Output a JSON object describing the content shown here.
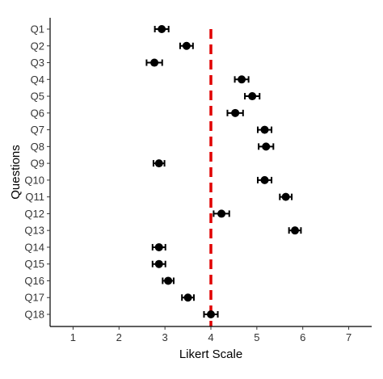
{
  "chart_data": {
    "type": "scatter",
    "xlabel": "Likert Scale",
    "ylabel": "Questions",
    "xlim": [
      0.5,
      7.5
    ],
    "x_ticks": [
      1,
      2,
      3,
      4,
      5,
      6,
      7
    ],
    "categories": [
      "Q1",
      "Q2",
      "Q3",
      "Q4",
      "Q5",
      "Q6",
      "Q7",
      "Q8",
      "Q9",
      "Q10",
      "Q11",
      "Q12",
      "Q13",
      "Q14",
      "Q15",
      "Q16",
      "Q17",
      "Q18"
    ],
    "series": [
      {
        "values": [
          2.93,
          3.47,
          2.77,
          4.67,
          4.9,
          4.53,
          5.17,
          5.2,
          2.87,
          5.17,
          5.63,
          4.23,
          5.83,
          2.87,
          2.87,
          3.07,
          3.5,
          4.0
        ],
        "error": [
          0.15,
          0.14,
          0.17,
          0.15,
          0.16,
          0.17,
          0.15,
          0.16,
          0.12,
          0.15,
          0.13,
          0.17,
          0.13,
          0.14,
          0.14,
          0.12,
          0.13,
          0.15
        ]
      }
    ],
    "reference_line": {
      "x": 4,
      "color": "#e00000",
      "style": "dashed"
    },
    "point_color": "#000000",
    "grid": false,
    "legend": "none"
  }
}
